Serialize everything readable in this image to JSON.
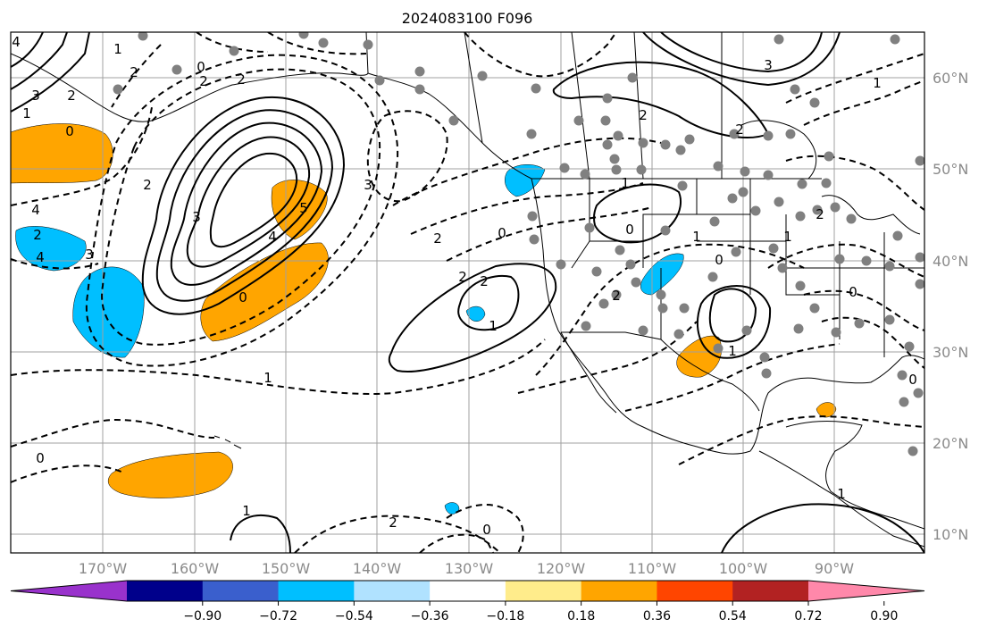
{
  "title": "2024083100 F096",
  "lon_labels": [
    "170°W",
    "160°W",
    "150°W",
    "140°W",
    "130°W",
    "120°W",
    "110°W",
    "100°W",
    "90°W"
  ],
  "lat_labels": [
    "60°N",
    "50°N",
    "40°N",
    "30°N",
    "20°N",
    "10°N"
  ],
  "colorbar": {
    "colors": [
      "#9932cc",
      "#00008b",
      "#3a5fcd",
      "#00bfff",
      "#b0e2ff",
      "#ffffff",
      "#ffec8b",
      "#ffa500",
      "#ff4500",
      "#b22222",
      "#ff88aa"
    ],
    "tick_labels": [
      "−0.90",
      "−0.72",
      "−0.54",
      "−0.36",
      "−0.18",
      "0.18",
      "0.36",
      "0.54",
      "0.72",
      "0.90"
    ]
  },
  "contour_labels": [
    "4",
    "3",
    "2",
    "1",
    "0",
    "2",
    "3",
    "4",
    "5",
    "3",
    "2",
    "1",
    "0",
    "4",
    "2",
    "4",
    "3",
    "2",
    "1",
    "0",
    "2",
    "1",
    "2",
    "1",
    "0",
    "2",
    "1",
    "3",
    "2",
    "2",
    "1",
    "2",
    "1",
    "0",
    "0",
    "1",
    "1",
    "0",
    "0",
    "0",
    "2",
    "1",
    "2",
    "2",
    "0"
  ],
  "fill_colors": {
    "positive": "#ffa500",
    "negative": "#00bfff",
    "station": "#808080"
  }
}
